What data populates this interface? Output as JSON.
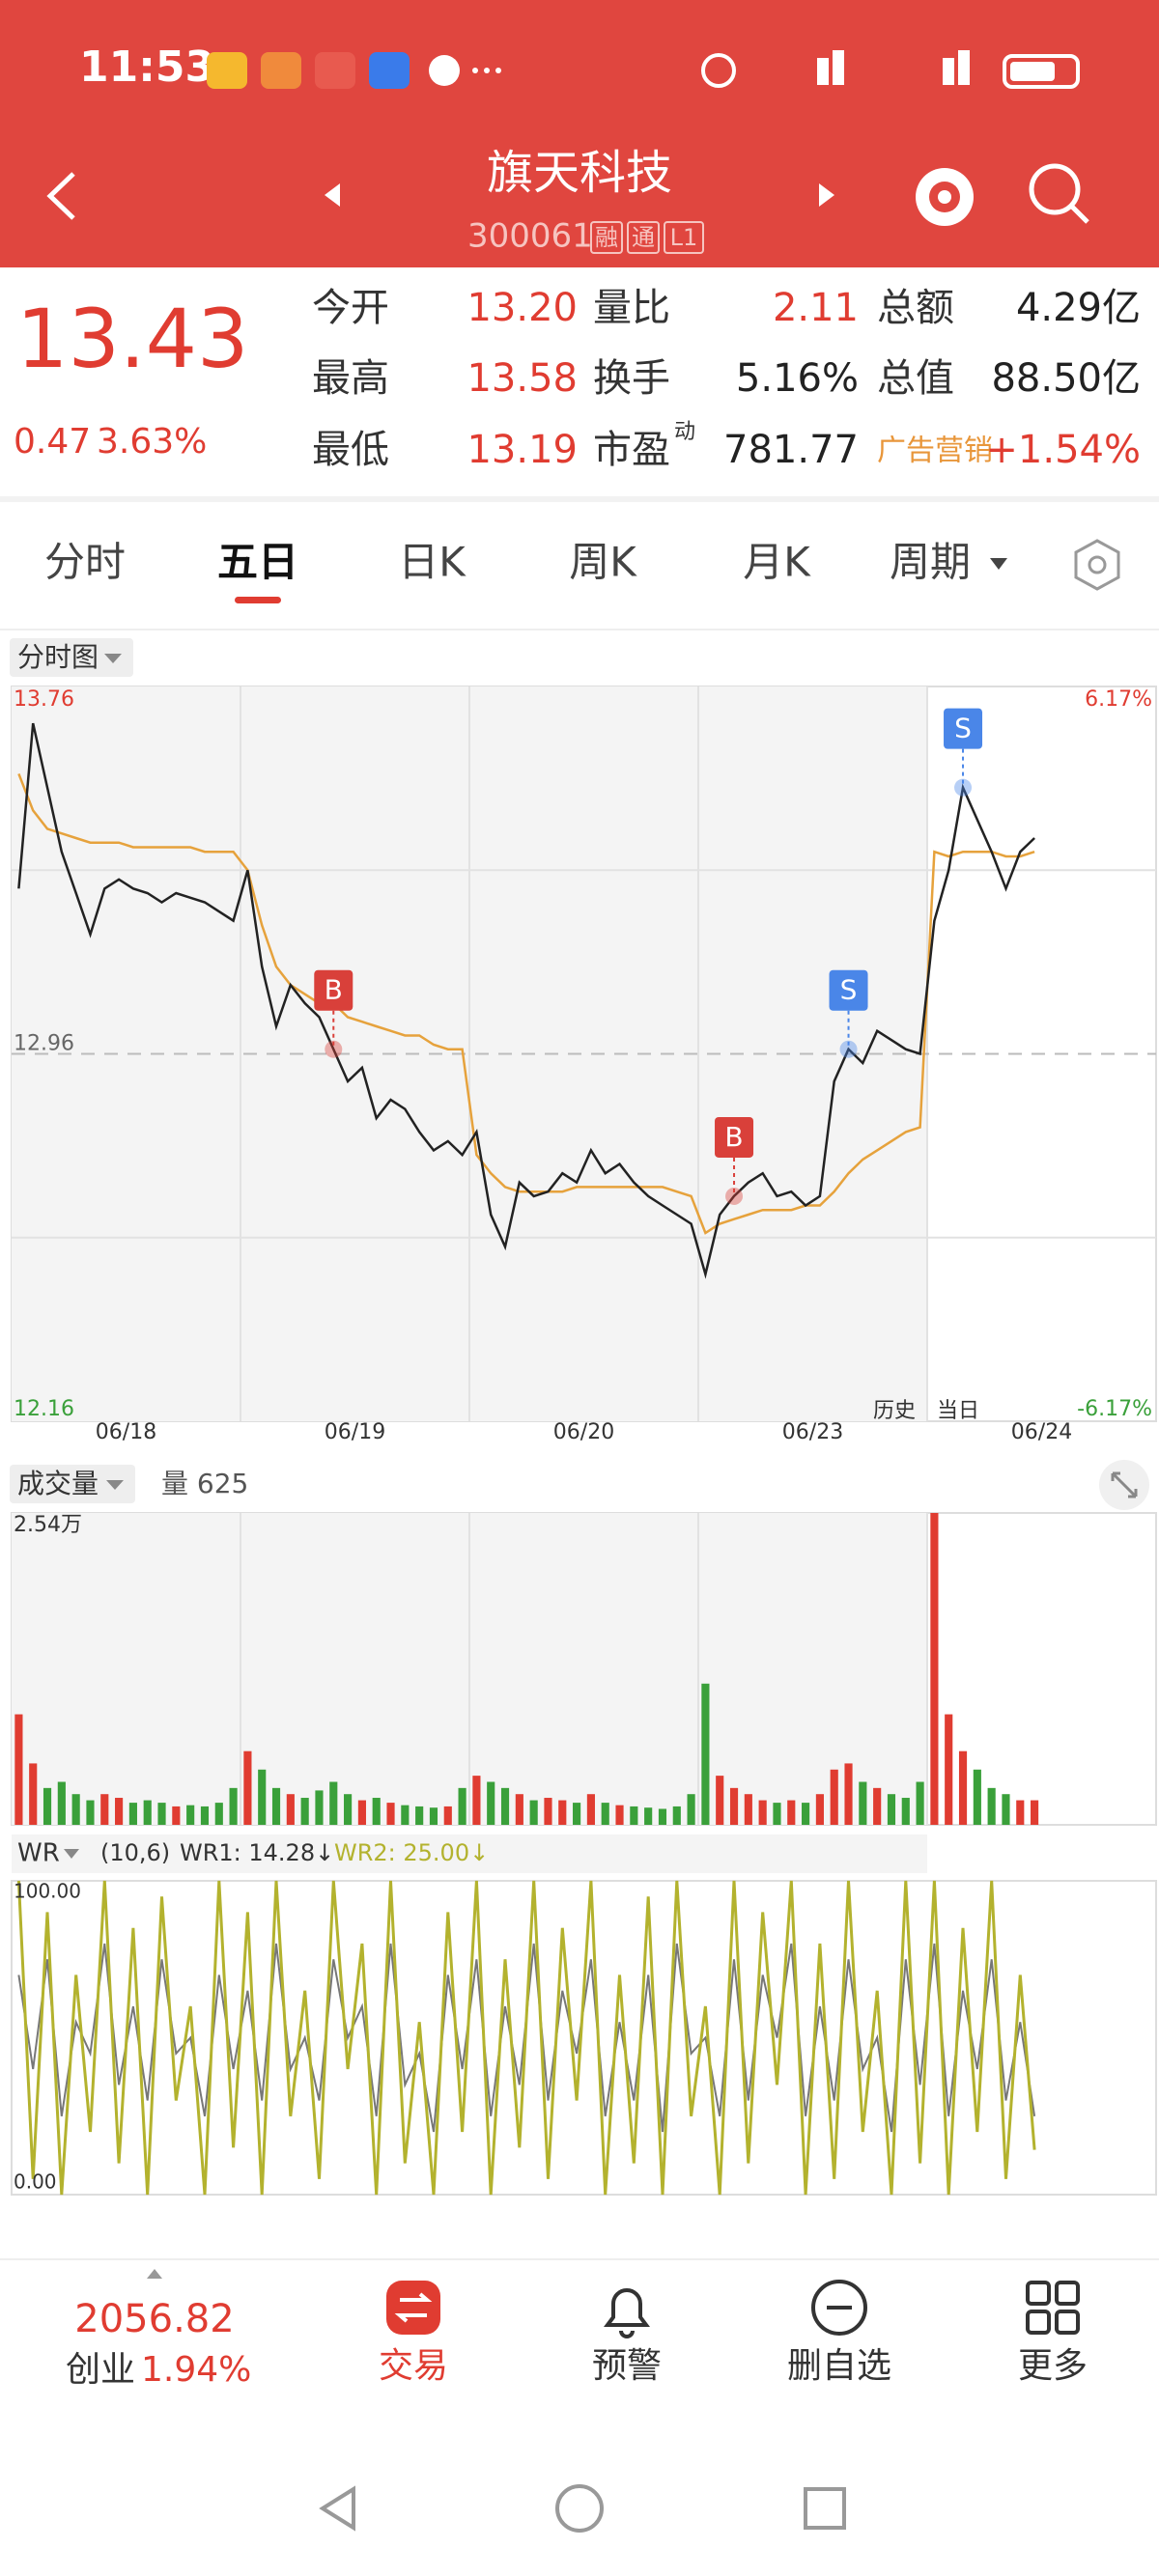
{
  "status_bar": {
    "time": "11:53"
  },
  "header": {
    "title": "旗天科技",
    "code": "300061",
    "badges": [
      "融",
      "通",
      "L1"
    ]
  },
  "quote": {
    "price": "13.43",
    "change": "0.47",
    "change_pct": "3.63%",
    "stats": [
      {
        "label": "今开",
        "value": "13.20",
        "color": "#e03c31"
      },
      {
        "label": "量比",
        "value": "2.11",
        "color": "#e03c31"
      },
      {
        "label": "总额",
        "value": "4.29亿",
        "color": "#222222"
      },
      {
        "label": "最高",
        "value": "13.58",
        "color": "#e03c31"
      },
      {
        "label": "换手",
        "value": "5.16%",
        "color": "#222222"
      },
      {
        "label": "总值",
        "value": "88.50亿",
        "color": "#222222"
      },
      {
        "label": "最低",
        "value": "13.19",
        "color": "#e03c31"
      },
      {
        "label": "市盈",
        "sup": "动",
        "value": "781.77",
        "color": "#222222"
      },
      {
        "label": "广告营销",
        "value": "+1.54%",
        "color": "#e03c31",
        "label_color": "#e8963a"
      }
    ]
  },
  "tabs": [
    "分时",
    "五日",
    "日K",
    "周K",
    "月K",
    "周期"
  ],
  "active_tab": 1,
  "chart_selector": "分时图",
  "chart_data": [
    {
      "type": "line",
      "days": [
        "06/18",
        "06/19",
        "06/20",
        "06/23",
        "06/24"
      ],
      "history_label": "历史",
      "today_label": "当日",
      "ylim": [
        12.16,
        13.76
      ],
      "yticks": [
        13.76,
        12.96,
        12.16
      ],
      "y2lim": [
        -6.17,
        6.17
      ],
      "y2ticks": [
        {
          "value": 6.17,
          "label": "6.17%"
        },
        {
          "value": -6.17,
          "label": "-6.17%"
        }
      ],
      "series": [
        {
          "name": "价格",
          "color": "#222222",
          "values": [
            13.32,
            13.68,
            13.54,
            13.4,
            13.31,
            13.22,
            13.32,
            13.34,
            13.32,
            13.31,
            13.29,
            13.31,
            13.3,
            13.29,
            13.27,
            13.25,
            13.36,
            13.15,
            13.02,
            13.11,
            13.07,
            13.04,
            12.97,
            12.9,
            12.93,
            12.82,
            12.86,
            12.84,
            12.79,
            12.75,
            12.77,
            12.74,
            12.79,
            12.61,
            12.54,
            12.68,
            12.65,
            12.66,
            12.7,
            12.68,
            12.75,
            12.7,
            12.72,
            12.68,
            12.65,
            12.63,
            12.61,
            12.59,
            12.48,
            12.61,
            12.65,
            12.68,
            12.7,
            12.65,
            12.66,
            12.63,
            12.65,
            12.9,
            12.97,
            12.94,
            13.01,
            12.99,
            12.97,
            12.96,
            13.25,
            13.36,
            13.54,
            13.47,
            13.4,
            13.32,
            13.4,
            13.43,
            null,
            null,
            null,
            null,
            null,
            null,
            null,
            null
          ]
        },
        {
          "name": "均价",
          "color": "#e6a23c",
          "values": [
            13.57,
            13.49,
            13.45,
            13.44,
            13.43,
            13.42,
            13.42,
            13.42,
            13.41,
            13.41,
            13.41,
            13.41,
            13.41,
            13.4,
            13.4,
            13.4,
            13.36,
            13.24,
            13.15,
            13.11,
            13.09,
            13.07,
            13.07,
            13.04,
            13.03,
            13.02,
            13.01,
            13.0,
            13.0,
            12.98,
            12.97,
            12.97,
            12.74,
            12.7,
            12.67,
            12.66,
            12.66,
            12.66,
            12.66,
            12.67,
            12.67,
            12.67,
            12.67,
            12.67,
            12.67,
            12.67,
            12.66,
            12.65,
            12.57,
            12.59,
            12.6,
            12.61,
            12.62,
            12.62,
            12.62,
            12.63,
            12.63,
            12.66,
            12.7,
            12.73,
            12.75,
            12.77,
            12.79,
            12.8,
            13.4,
            13.39,
            13.4,
            13.4,
            13.4,
            13.39,
            13.39,
            13.4,
            null,
            null,
            null,
            null,
            null,
            null,
            null,
            null
          ]
        }
      ],
      "trade_marks": [
        {
          "label": "B",
          "index": 22,
          "color": "#d9403a"
        },
        {
          "label": "B",
          "index": 50,
          "color": "#d9403a"
        },
        {
          "label": "S",
          "index": 58,
          "color": "#4a86e8"
        },
        {
          "label": "S",
          "index": 66,
          "color": "#4a86e8"
        }
      ]
    },
    {
      "type": "bar",
      "title": "成交量",
      "current": "量 625",
      "ylim": [
        0,
        25400
      ],
      "yticks": [
        {
          "value": 25400,
          "label": "2.54万"
        }
      ],
      "up_color": "#e03c31",
      "down_color": "#3aa03a",
      "values": [
        9000,
        5000,
        3000,
        3500,
        2500,
        2000,
        2500,
        2200,
        1800,
        2000,
        1800,
        1500,
        1600,
        1500,
        1800,
        3000,
        6000,
        4500,
        3000,
        2500,
        2200,
        2800,
        3500,
        2500,
        2000,
        2200,
        1800,
        1600,
        1500,
        1400,
        1500,
        3000,
        4000,
        3500,
        3000,
        2500,
        2000,
        2200,
        2000,
        1800,
        2500,
        1800,
        1600,
        1500,
        1400,
        1300,
        1500,
        2500,
        11500,
        4000,
        3000,
        2500,
        2000,
        1800,
        2000,
        1800,
        2500,
        4500,
        5000,
        3500,
        3000,
        2500,
        2200,
        3500,
        25400,
        9000,
        6000,
        4500,
        3000,
        2500,
        2000,
        2000,
        null,
        null,
        null,
        null,
        null,
        null,
        null,
        null
      ]
    },
    {
      "type": "line",
      "title": "WR",
      "params": "(10,6)",
      "ylim": [
        0,
        100
      ],
      "yticks": [
        {
          "value": 100,
          "label": "100.00"
        },
        {
          "value": 0,
          "label": "0.00"
        }
      ],
      "series": [
        {
          "name": "WR1: 14.28↓",
          "color": "#b3b22e",
          "values": [
            100,
            5,
            90,
            0,
            70,
            20,
            100,
            10,
            85,
            0,
            95,
            30,
            60,
            0,
            100,
            15,
            90,
            0,
            100,
            25,
            65,
            5,
            100,
            40,
            80,
            0,
            100,
            10,
            55,
            0,
            90,
            20,
            100,
            0,
            75,
            15,
            100,
            5,
            85,
            30,
            100,
            0,
            70,
            10,
            95,
            0,
            100,
            25,
            60,
            0,
            100,
            10,
            90,
            35,
            100,
            0,
            80,
            5,
            100,
            20,
            65,
            0,
            100,
            10,
            100,
            0,
            85,
            20,
            100,
            5,
            70,
            14.28,
            null,
            null,
            null,
            null,
            null,
            null,
            null,
            null
          ]
        },
        {
          "name": "WR2: 25.00↓",
          "color": "#777777",
          "values": [
            70,
            40,
            75,
            25,
            55,
            45,
            80,
            35,
            60,
            30,
            75,
            45,
            50,
            25,
            70,
            40,
            65,
            30,
            80,
            40,
            50,
            30,
            75,
            50,
            60,
            25,
            80,
            35,
            45,
            20,
            70,
            40,
            75,
            25,
            60,
            35,
            80,
            30,
            65,
            45,
            75,
            25,
            55,
            30,
            70,
            20,
            80,
            45,
            50,
            25,
            75,
            30,
            70,
            50,
            80,
            25,
            60,
            30,
            75,
            40,
            50,
            20,
            75,
            35,
            80,
            25,
            65,
            40,
            75,
            30,
            55,
            25,
            null,
            null,
            null,
            null,
            null,
            null,
            null,
            null
          ]
        }
      ]
    }
  ],
  "index_bar": {
    "value": "2056.82",
    "name": "创业",
    "pct": "1.94%"
  },
  "nav": [
    "交易",
    "预警",
    "删自选",
    "更多"
  ]
}
